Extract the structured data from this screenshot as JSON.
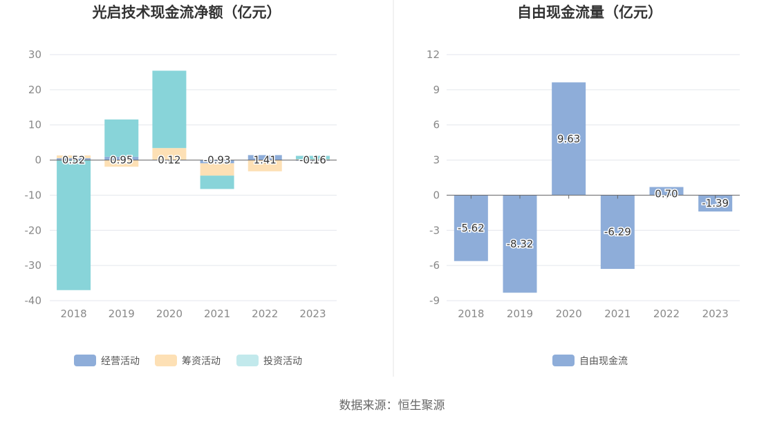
{
  "colors": {
    "operating": "#8eadd9",
    "financing": "#fde0b5",
    "investing": "#88d4d9",
    "investing_legend": "#c2e9ec",
    "free": "#8eadd9"
  },
  "chart_data": [
    {
      "type": "bar",
      "title": "光启技术现金流净额（亿元）",
      "categories": [
        "2018",
        "2019",
        "2020",
        "2021",
        "2022",
        "2023"
      ],
      "ylim": [
        -40,
        30
      ],
      "yticks": [
        "30",
        "20",
        "10",
        "0",
        "-10",
        "-20",
        "-30",
        "-40"
      ],
      "stacked": true,
      "series": [
        {
          "name": "经营活动",
          "color_key": "operating",
          "values": [
            0.52,
            0.95,
            0.12,
            -0.93,
            1.41,
            -0.16
          ],
          "labels": [
            "0.52",
            "0.95",
            "0.12",
            "-0.93",
            "1.41",
            "-0.16"
          ]
        },
        {
          "name": "筹资活动",
          "color_key": "financing",
          "values": [
            0.8,
            -1.9,
            3.3,
            -3.5,
            -3.2,
            0.2
          ]
        },
        {
          "name": "投资活动",
          "color_key": "investing",
          "values": [
            -37.0,
            10.6,
            22.0,
            -3.8,
            0.0,
            1.0
          ]
        }
      ],
      "legend": {
        "position": "bottom"
      },
      "grid": true
    },
    {
      "type": "bar",
      "title": "自由现金流量（亿元）",
      "categories": [
        "2018",
        "2019",
        "2020",
        "2021",
        "2022",
        "2023"
      ],
      "ylim": [
        -9,
        12
      ],
      "yticks": [
        "12",
        "9",
        "6",
        "3",
        "0",
        "-3",
        "-6",
        "-9"
      ],
      "series": [
        {
          "name": "自由现金流",
          "color_key": "free",
          "values": [
            -5.62,
            -8.32,
            9.63,
            -6.29,
            0.7,
            -1.39
          ],
          "labels": [
            "-5.62",
            "-8.32",
            "9.63",
            "-6.29",
            "0.70",
            "-1.39"
          ]
        }
      ],
      "legend": {
        "position": "bottom"
      },
      "grid": true
    }
  ],
  "source": "数据来源：恒生聚源"
}
